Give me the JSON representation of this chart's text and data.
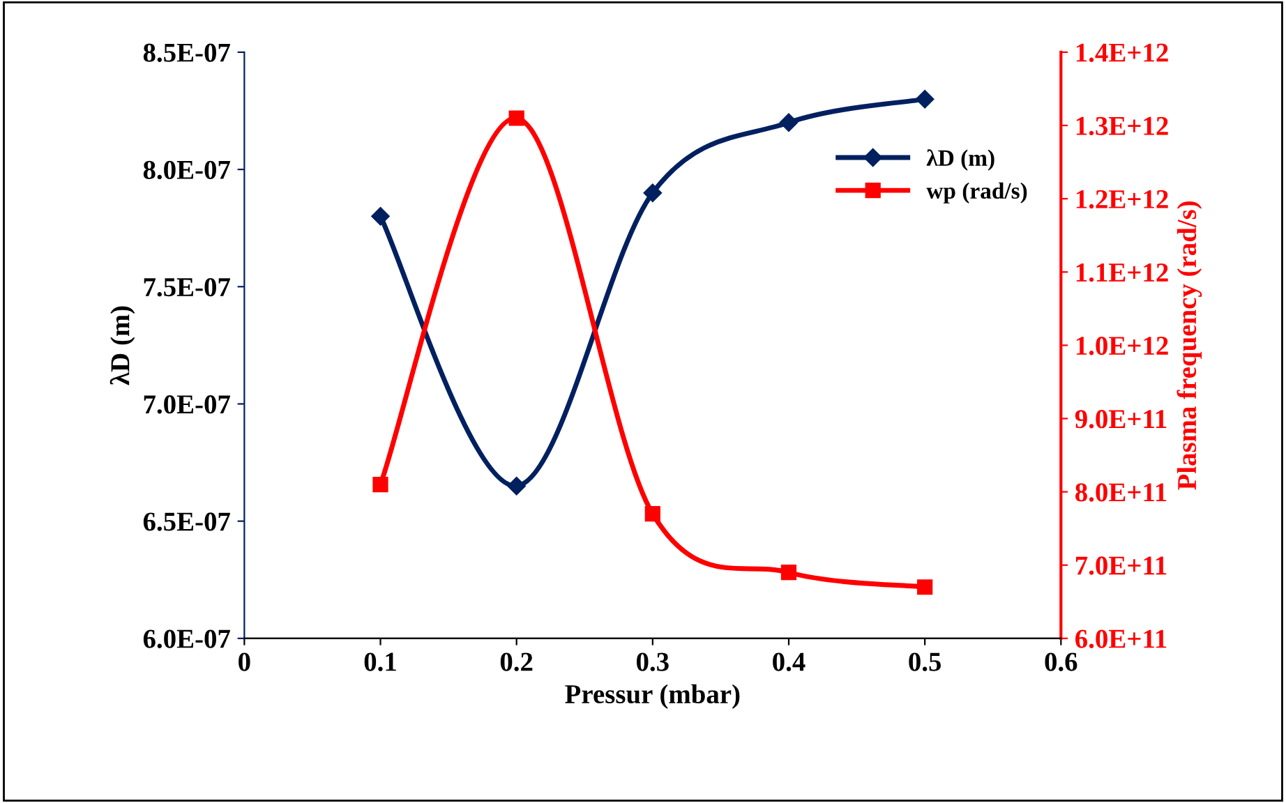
{
  "chart_data": {
    "type": "line",
    "xlabel": "Pressur (mbar)",
    "ylabel": "λD (m)",
    "y2label": "Plasma frequency (rad/s)",
    "x": [
      0.1,
      0.2,
      0.3,
      0.4,
      0.5
    ],
    "series": [
      {
        "name": "λD (m)",
        "color": "#002060",
        "marker": "diamond",
        "values": [
          7.8e-07,
          6.65e-07,
          7.9e-07,
          8.2e-07,
          8.3e-07
        ]
      },
      {
        "name": "wp (rad/s)",
        "color": "#ff0000",
        "marker": "square",
        "axis": "y2",
        "values": [
          810000000000.0,
          1310000000000.0,
          770000000000.0,
          690000000000.0,
          670000000000.0
        ]
      }
    ],
    "xlim": [
      0,
      0.6
    ],
    "xticks": [
      0,
      0.1,
      0.2,
      0.3,
      0.4,
      0.5,
      0.6
    ],
    "ylim": [
      6e-07,
      8.5e-07
    ],
    "yticks": [
      {
        "value": 6e-07,
        "label": "6.0E-07"
      },
      {
        "value": 6.5e-07,
        "label": "6.5E-07"
      },
      {
        "value": 7e-07,
        "label": "7.0E-07"
      },
      {
        "value": 7.5e-07,
        "label": "7.5E-07"
      },
      {
        "value": 8e-07,
        "label": "8.0E-07"
      },
      {
        "value": 8.5e-07,
        "label": "8.5E-07"
      }
    ],
    "y2lim": [
      600000000000.0,
      1400000000000.0
    ],
    "y2ticks": [
      {
        "value": 600000000000.0,
        "label": "6.0E+11"
      },
      {
        "value": 700000000000.0,
        "label": "7.0E+11"
      },
      {
        "value": 800000000000.0,
        "label": "8.0E+11"
      },
      {
        "value": 900000000000.0,
        "label": "9.0E+11"
      },
      {
        "value": 1000000000000.0,
        "label": "1.0E+12"
      },
      {
        "value": 1100000000000.0,
        "label": "1.1E+12"
      },
      {
        "value": 1200000000000.0,
        "label": "1.2E+12"
      },
      {
        "value": 1300000000000.0,
        "label": "1.3E+12"
      },
      {
        "value": 1400000000000.0,
        "label": "1.4E+12"
      }
    ],
    "grid": false,
    "legend": "top right",
    "line_style": "solid"
  }
}
